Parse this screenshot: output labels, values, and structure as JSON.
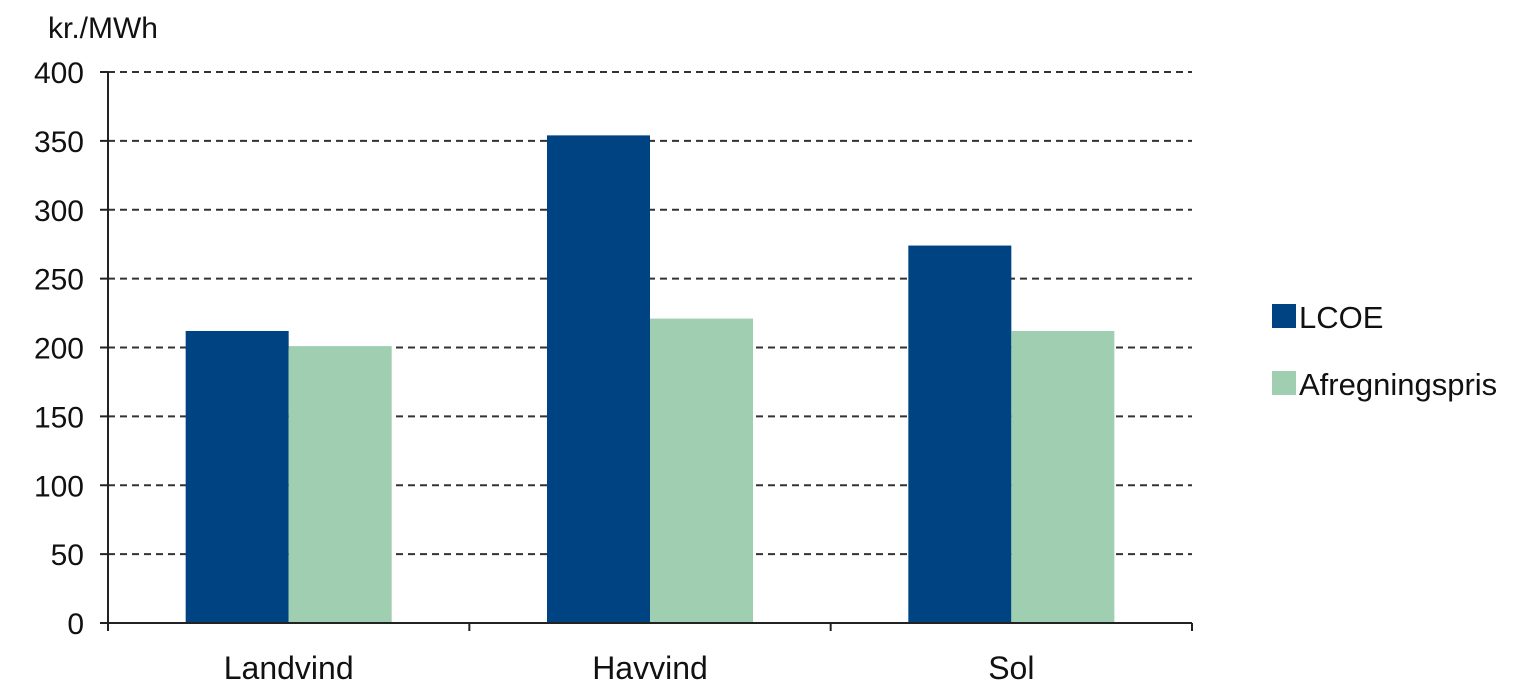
{
  "chart_data": {
    "type": "bar",
    "ylabel": "kr./MWh",
    "categories": [
      "Landvind",
      "Havvind",
      "Sol"
    ],
    "series": [
      {
        "name": "LCOE",
        "values": [
          212,
          354,
          274
        ],
        "color": "#004382"
      },
      {
        "name": "Afregningspris",
        "values": [
          201,
          221,
          212
        ],
        "color": "#9fceb0"
      }
    ],
    "ylim": [
      0,
      400
    ],
    "yticks": [
      0,
      50,
      100,
      150,
      200,
      250,
      300,
      350,
      400
    ],
    "grid": true,
    "grid_style": "dashed",
    "legend_position": "right"
  }
}
